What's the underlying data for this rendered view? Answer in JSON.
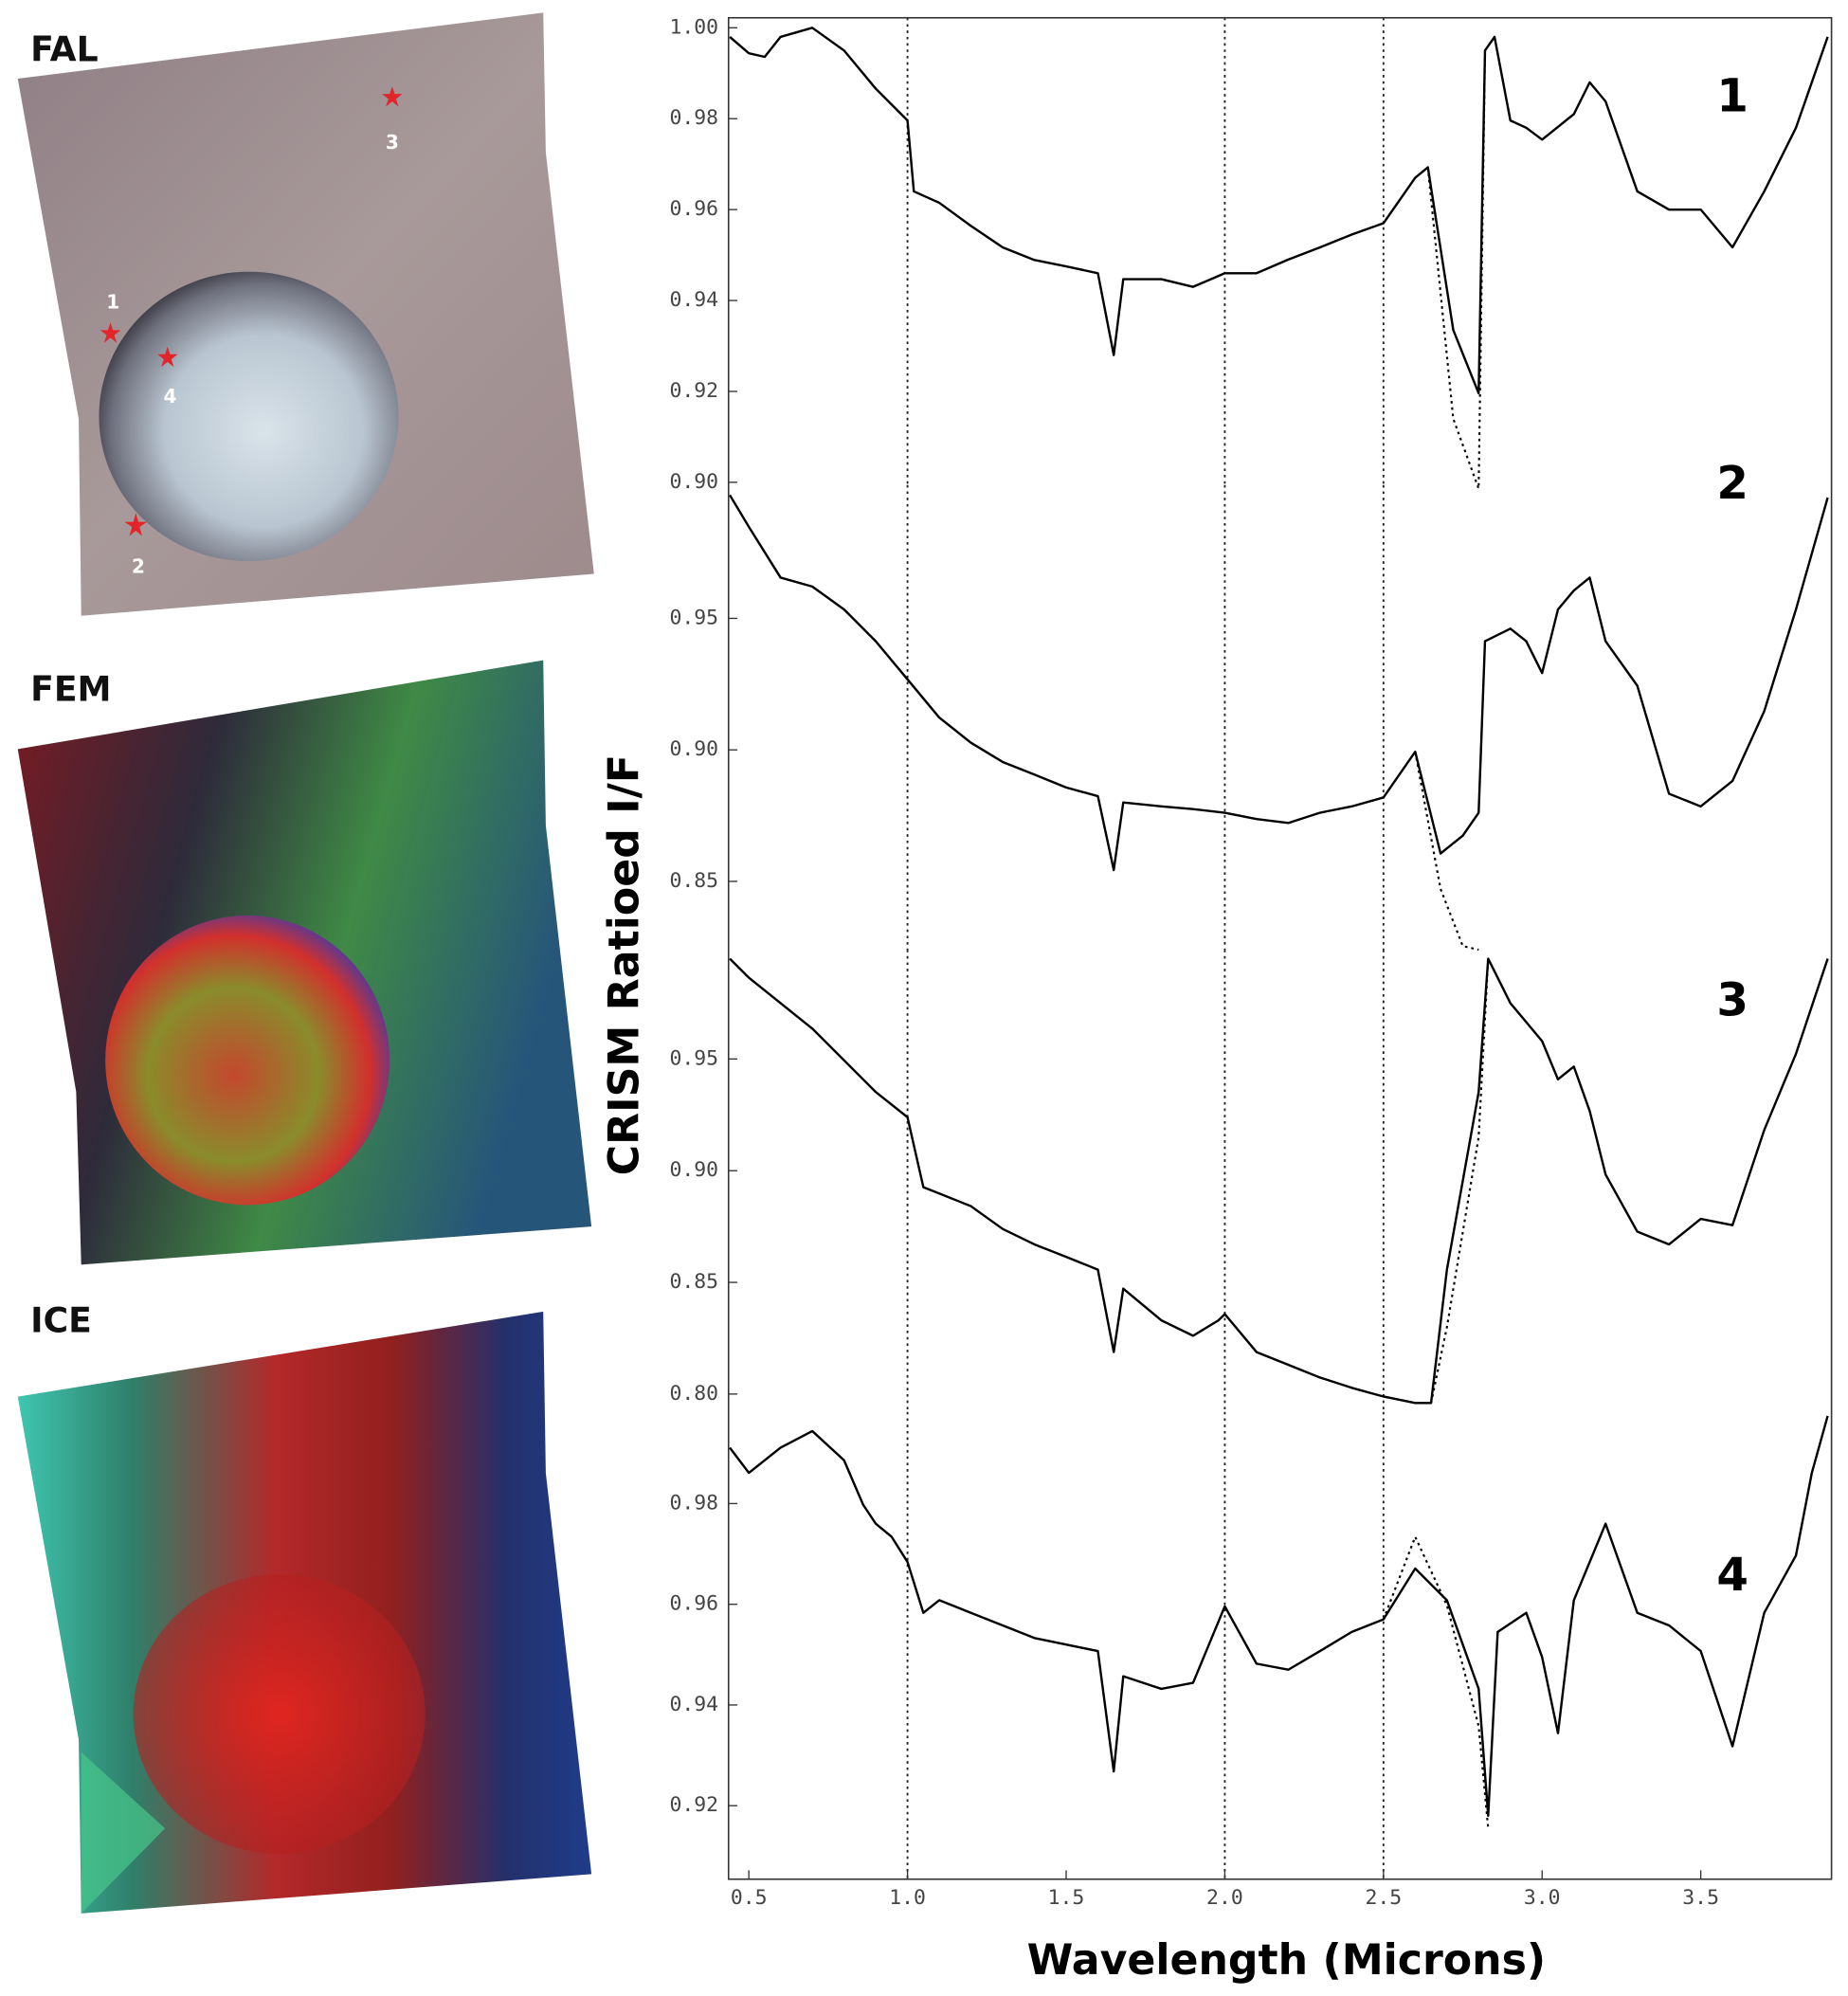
{
  "images": [
    {
      "label": "FAL",
      "site_labels": [
        "1",
        "2",
        "3",
        "4"
      ]
    },
    {
      "label": "FEM"
    },
    {
      "label": "ICE"
    }
  ],
  "chart_data": [
    {
      "type": "line",
      "label": "1",
      "ylabel": "CRISM Ratioed I/F",
      "xlim": [
        0.436,
        3.912
      ],
      "ylim": [
        0.8994,
        1.0022
      ],
      "yticks": [
        {
          "value": 1,
          "label": "1.00"
        },
        0.98,
        0.96,
        0.94,
        0.92,
        {
          "value": 0.9,
          "label": "0.90"
        }
      ],
      "reference_lines": [
        1,
        2,
        2.5
      ],
      "x": [
        0.44,
        0.5,
        0.55,
        0.6,
        0.7,
        0.8,
        0.9,
        1.0,
        1.02,
        1.1,
        1.2,
        1.3,
        1.4,
        1.5,
        1.6,
        1.65,
        1.68,
        1.8,
        1.9,
        2.0,
        2.1,
        2.2,
        2.3,
        2.4,
        2.5,
        2.6,
        2.64,
        2.72,
        2.8,
        2.82,
        2.85,
        2.9,
        2.95,
        3.0,
        3.1,
        3.15,
        3.2,
        3.3,
        3.4,
        3.5,
        3.6,
        3.7,
        3.8,
        3.9
      ],
      "series": [
        {
          "color": "#000000",
          "line_style": "solid",
          "values": [
            0.998,
            0.9944,
            0.9936,
            0.998,
            1.0,
            0.995,
            0.9866,
            0.9796,
            0.964,
            0.9615,
            0.9564,
            0.9517,
            0.9489,
            0.9475,
            0.946,
            0.928,
            0.9447,
            0.9447,
            0.943,
            0.946,
            0.946,
            0.949,
            0.9517,
            0.9545,
            0.957,
            0.967,
            0.9693,
            0.9335,
            0.9196,
            0.995,
            0.998,
            0.9796,
            0.978,
            0.9754,
            0.981,
            0.988,
            0.9838,
            0.964,
            0.96,
            0.96,
            0.9517,
            0.964,
            0.978,
            0.998
          ]
        },
        {
          "color": "#000000",
          "line_style": "dotted",
          "values": [
            null,
            null,
            null,
            null,
            null,
            null,
            null,
            null,
            null,
            null,
            null,
            null,
            null,
            null,
            null,
            null,
            null,
            null,
            null,
            null,
            null,
            null,
            null,
            null,
            null,
            null,
            0.9693,
            0.914,
            0.8986,
            0.995,
            null,
            null,
            null,
            null,
            null,
            null,
            null,
            null,
            null,
            null,
            null,
            null,
            null,
            null
          ]
        }
      ]
    },
    {
      "type": "line",
      "label": "2",
      "xlim": [
        0.436,
        3.912
      ],
      "ylim": [
        0.824,
        1.0007
      ],
      "yticks": [
        0.95,
        {
          "value": 0.9,
          "label": "0.90"
        },
        0.85
      ],
      "reference_lines": [
        1,
        2,
        2.5
      ],
      "x": [
        0.44,
        0.5,
        0.6,
        0.7,
        0.8,
        0.9,
        1.0,
        1.1,
        1.2,
        1.3,
        1.4,
        1.5,
        1.6,
        1.65,
        1.68,
        1.8,
        1.9,
        2.0,
        2.1,
        2.2,
        2.3,
        2.4,
        2.5,
        2.6,
        2.68,
        2.75,
        2.8,
        2.82,
        2.9,
        2.95,
        3.0,
        3.05,
        3.1,
        3.15,
        3.2,
        3.3,
        3.4,
        3.5,
        3.6,
        3.7,
        3.8,
        3.9
      ],
      "series": [
        {
          "color": "#000000",
          "line_style": "solid",
          "values": [
            0.9969,
            0.9848,
            0.9655,
            0.9621,
            0.9534,
            0.9413,
            0.9268,
            0.9123,
            0.9027,
            0.8954,
            0.8906,
            0.8857,
            0.8824,
            0.8543,
            0.88,
            0.8785,
            0.8775,
            0.8761,
            0.8737,
            0.8722,
            0.8761,
            0.8785,
            0.8819,
            0.8993,
            0.8606,
            0.8674,
            0.8761,
            0.9413,
            0.9461,
            0.9413,
            0.9292,
            0.9534,
            0.9606,
            0.9655,
            0.9413,
            0.9244,
            0.8833,
            0.8785,
            0.8882,
            0.9147,
            0.9534,
            0.9959
          ]
        },
        {
          "color": "#000000",
          "line_style": "dotted",
          "values": [
            null,
            null,
            null,
            null,
            null,
            null,
            null,
            null,
            null,
            null,
            null,
            null,
            null,
            null,
            null,
            null,
            null,
            null,
            null,
            null,
            null,
            null,
            null,
            0.8993,
            0.8471,
            0.8254,
            0.824,
            null,
            null,
            null,
            null,
            null,
            null,
            null,
            null,
            null,
            null,
            null,
            null,
            null,
            null,
            null
          ]
        }
      ]
    },
    {
      "type": "line",
      "label": "3",
      "xlim": [
        0.436,
        3.912
      ],
      "ylim": [
        0.792,
        0.9989
      ],
      "yticks": [
        0.95,
        {
          "value": 0.9,
          "label": "0.90"
        },
        0.85,
        {
          "value": 0.8,
          "label": "0.80"
        }
      ],
      "reference_lines": [
        1,
        2,
        2.5
      ],
      "x": [
        0.44,
        0.5,
        0.6,
        0.7,
        0.8,
        0.9,
        1.0,
        1.05,
        1.1,
        1.2,
        1.3,
        1.4,
        1.5,
        1.6,
        1.65,
        1.68,
        1.8,
        1.9,
        1.98,
        2.0,
        2.1,
        2.2,
        2.3,
        2.4,
        2.5,
        2.6,
        2.65,
        2.7,
        2.8,
        2.83,
        2.9,
        3.0,
        3.05,
        3.1,
        3.15,
        3.2,
        3.3,
        3.4,
        3.5,
        3.6,
        3.7,
        3.8,
        3.9
      ],
      "series": [
        {
          "color": "#000000",
          "line_style": "solid",
          "values": [
            0.9949,
            0.9864,
            0.975,
            0.9636,
            0.9494,
            0.9352,
            0.9239,
            0.8926,
            0.8898,
            0.8841,
            0.8739,
            0.867,
            0.8614,
            0.8557,
            0.8188,
            0.8472,
            0.833,
            0.8261,
            0.833,
            0.8358,
            0.8188,
            0.8131,
            0.8074,
            0.8028,
            0.7989,
            0.796,
            0.796,
            0.8557,
            0.9352,
            0.9949,
            0.975,
            0.958,
            0.9409,
            0.9466,
            0.9267,
            0.8983,
            0.8727,
            0.867,
            0.8784,
            0.8756,
            0.9182,
            0.9523,
            0.9949
          ]
        },
        {
          "color": "#000000",
          "line_style": "dotted",
          "values": [
            null,
            null,
            null,
            null,
            null,
            null,
            null,
            null,
            null,
            null,
            null,
            null,
            null,
            null,
            null,
            null,
            null,
            null,
            null,
            null,
            null,
            null,
            null,
            null,
            null,
            null,
            0.796,
            0.83,
            0.915,
            0.9949,
            null,
            null,
            null,
            null,
            null,
            null,
            null,
            null,
            null,
            null,
            null,
            null,
            null
          ]
        }
      ]
    },
    {
      "type": "line",
      "label": "4",
      "xlabel": "Wavelength (Microns)",
      "xlim": [
        0.436,
        3.912
      ],
      "ylim": [
        0.9054,
        0.9982
      ],
      "xticks": [
        0.5,
        {
          "value": 1,
          "label": "1.0"
        },
        1.5,
        {
          "value": 2,
          "label": "2.0"
        },
        2.5,
        {
          "value": 3,
          "label": "3.0"
        },
        3.5
      ],
      "yticks": [
        0.98,
        0.96,
        0.94,
        0.92
      ],
      "reference_lines": [
        1,
        2,
        2.5
      ],
      "x": [
        0.44,
        0.5,
        0.6,
        0.7,
        0.8,
        0.86,
        0.9,
        0.95,
        1.0,
        1.05,
        1.1,
        1.2,
        1.3,
        1.4,
        1.5,
        1.6,
        1.65,
        1.68,
        1.8,
        1.9,
        2.0,
        2.1,
        2.2,
        2.3,
        2.4,
        2.5,
        2.6,
        2.7,
        2.8,
        2.83,
        2.86,
        2.95,
        3.0,
        3.05,
        3.1,
        3.2,
        3.3,
        3.4,
        3.5,
        3.6,
        3.7,
        3.8,
        3.85,
        3.9
      ],
      "series": [
        {
          "color": "#000000",
          "line_style": "solid",
          "values": [
            0.9911,
            0.9861,
            0.9911,
            0.9944,
            0.9886,
            0.9798,
            0.976,
            0.9734,
            0.9684,
            0.9583,
            0.9608,
            0.9583,
            0.9558,
            0.9533,
            0.952,
            0.9507,
            0.9268,
            0.9457,
            0.9432,
            0.9444,
            0.9596,
            0.9482,
            0.947,
            0.9507,
            0.9545,
            0.957,
            0.9671,
            0.9608,
            0.9432,
            0.918,
            0.9545,
            0.9583,
            0.9495,
            0.9344,
            0.9608,
            0.976,
            0.9583,
            0.9558,
            0.9507,
            0.9318,
            0.9583,
            0.9697,
            0.9861,
            0.9974
          ]
        },
        {
          "color": "#000000",
          "line_style": "dotted",
          "values": [
            null,
            null,
            null,
            null,
            null,
            null,
            null,
            null,
            null,
            null,
            null,
            null,
            null,
            null,
            null,
            null,
            null,
            null,
            null,
            null,
            null,
            null,
            null,
            null,
            null,
            0.957,
            0.9734,
            0.9598,
            0.9358,
            0.9155,
            null,
            null,
            null,
            null,
            null,
            null,
            null,
            null,
            null,
            null,
            null,
            null,
            null,
            null
          ]
        }
      ]
    }
  ]
}
